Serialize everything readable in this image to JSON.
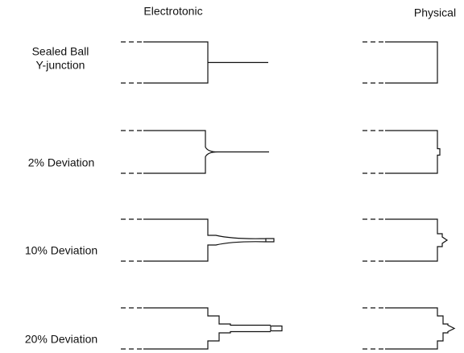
{
  "columns": [
    "Electrotonic",
    "Physical"
  ],
  "rows": [
    {
      "label": [
        "Sealed Ball",
        "Y-junction"
      ]
    },
    {
      "label": [
        "2% Deviation"
      ]
    },
    {
      "label": [
        "10% Deviation"
      ]
    },
    {
      "label": [
        "20% Deviation"
      ]
    }
  ]
}
